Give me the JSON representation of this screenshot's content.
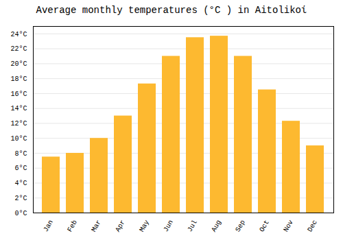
{
  "chart_data": {
    "type": "bar",
    "title": "Average monthly temperatures (°C ) in Aitolikoί",
    "categories": [
      "Jan",
      "Feb",
      "Mar",
      "Apr",
      "May",
      "Jun",
      "Jul",
      "Aug",
      "Sep",
      "Oct",
      "Nov",
      "Dec"
    ],
    "values": [
      7.5,
      8.0,
      10.0,
      13.0,
      17.3,
      21.0,
      23.5,
      23.7,
      21.0,
      16.5,
      12.3,
      9.0
    ],
    "color": "#FDB930",
    "ylim": [
      0,
      25
    ],
    "yticks": [
      {
        "value": 0,
        "label": "0°C"
      },
      {
        "value": 2,
        "label": "2°C"
      },
      {
        "value": 4,
        "label": "4°C"
      },
      {
        "value": 6,
        "label": "6°C"
      },
      {
        "value": 8,
        "label": "8°C"
      },
      {
        "value": 10,
        "label": "10°C"
      },
      {
        "value": 12,
        "label": "12°C"
      },
      {
        "value": 14,
        "label": "14°C"
      },
      {
        "value": 16,
        "label": "16°C"
      },
      {
        "value": 18,
        "label": "18°C"
      },
      {
        "value": 20,
        "label": "20°C"
      },
      {
        "value": 22,
        "label": "22°C"
      },
      {
        "value": 24,
        "label": "24°C"
      }
    ],
    "grid": true
  }
}
